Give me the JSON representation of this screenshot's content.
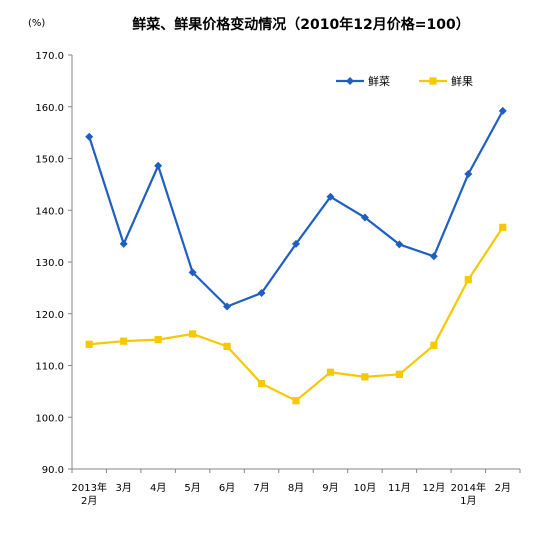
{
  "chart_data": {
    "type": "line",
    "title": "鲜菜、鲜果价格变动情况（2010年12月价格=100）",
    "unit_label": "(%)",
    "categories": [
      [
        "2013年",
        "2月"
      ],
      [
        "3月"
      ],
      [
        "4月"
      ],
      [
        "5月"
      ],
      [
        "6月"
      ],
      [
        "7月"
      ],
      [
        "8月"
      ],
      [
        "9月"
      ],
      [
        "10月"
      ],
      [
        "11月"
      ],
      [
        "12月"
      ],
      [
        "2014年",
        "1月"
      ],
      [
        "2月"
      ]
    ],
    "ylim": [
      90,
      170
    ],
    "yticks": [
      "90.0",
      "100.0",
      "110.0",
      "120.0",
      "130.0",
      "140.0",
      "150.0",
      "160.0",
      "170.0"
    ],
    "grid": false,
    "legend_position": "top-right",
    "series": [
      {
        "name": "鲜菜",
        "color": "#1f5fc2",
        "marker": "diamond",
        "values": [
          154.2,
          133.5,
          148.6,
          128.0,
          121.4,
          124.0,
          133.5,
          142.6,
          138.6,
          133.4,
          131.1,
          147.0,
          159.2
        ]
      },
      {
        "name": "鲜果",
        "color": "#f5c800",
        "marker": "square",
        "values": [
          114.1,
          114.7,
          115.0,
          116.1,
          113.7,
          106.5,
          103.2,
          108.7,
          107.8,
          108.3,
          113.9,
          126.6,
          136.7
        ]
      }
    ]
  }
}
